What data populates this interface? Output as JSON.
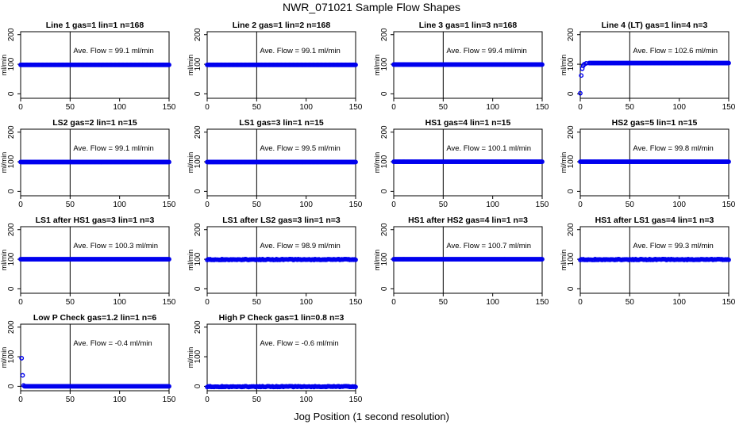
{
  "figure": {
    "title": "NWR_071021  Sample Flow Shapes",
    "xlabel": "Jog Position (1 second resolution)"
  },
  "colors": {
    "points": "#0000ee",
    "axes": "#000000"
  },
  "chart_data": [
    {
      "type": "scatter",
      "title": "Line 1 gas=1 lin=1 n=168",
      "annotation": "Ave. Flow = 99.1  ml/min",
      "ylabel": "ml/min",
      "xlim": [
        0,
        150
      ],
      "ylim": [
        -15,
        210
      ],
      "xticks": [
        0,
        50,
        100,
        150
      ],
      "yticks": [
        0,
        100,
        200
      ],
      "hline": 100,
      "vline": 50,
      "points": [
        [
          0,
          98
        ],
        [
          150,
          98
        ]
      ],
      "profile": "flat"
    },
    {
      "type": "scatter",
      "title": "Line 2 gas=1 lin=2 n=168",
      "annotation": "Ave. Flow = 99.1  ml/min",
      "ylabel": "ml/min",
      "xlim": [
        0,
        150
      ],
      "ylim": [
        -15,
        210
      ],
      "xticks": [
        0,
        50,
        100,
        150
      ],
      "yticks": [
        0,
        100,
        200
      ],
      "hline": 100,
      "vline": 50,
      "points": [
        [
          0,
          98
        ],
        [
          150,
          98
        ]
      ],
      "profile": "flat"
    },
    {
      "type": "scatter",
      "title": "Line 3 gas=1 lin=3 n=168",
      "annotation": "Ave. Flow = 99.4  ml/min",
      "ylabel": "ml/min",
      "xlim": [
        0,
        150
      ],
      "ylim": [
        -15,
        210
      ],
      "xticks": [
        0,
        50,
        100,
        150
      ],
      "yticks": [
        0,
        100,
        200
      ],
      "hline": 100,
      "vline": 50,
      "points": [
        [
          0,
          99
        ],
        [
          150,
          99
        ]
      ],
      "profile": "flat"
    },
    {
      "type": "scatter",
      "title": "Line 4 (LT) gas=1 lin=4 n=3",
      "annotation": "Ave. Flow = 102.6  ml/min",
      "ylabel": "ml/min",
      "xlim": [
        0,
        150
      ],
      "ylim": [
        -15,
        210
      ],
      "xticks": [
        0,
        50,
        100,
        150
      ],
      "yticks": [
        0,
        100,
        200
      ],
      "hline": 100,
      "vline": 50,
      "points": [
        [
          0,
          2
        ],
        [
          1,
          62
        ],
        [
          2,
          85
        ],
        [
          3,
          95
        ],
        [
          4,
          100
        ],
        [
          6,
          103
        ],
        [
          9,
          104
        ],
        [
          150,
          104
        ]
      ],
      "profile": "rise"
    },
    {
      "type": "scatter",
      "title": "LS2 gas=2 lin=1 n=15",
      "annotation": "Ave. Flow = 99.1  ml/min",
      "ylabel": "ml/min",
      "xlim": [
        0,
        150
      ],
      "ylim": [
        -15,
        210
      ],
      "xticks": [
        0,
        50,
        100,
        150
      ],
      "yticks": [
        0,
        100,
        200
      ],
      "hline": 100,
      "vline": 50,
      "points": [
        [
          0,
          99
        ],
        [
          150,
          99
        ]
      ],
      "profile": "flat"
    },
    {
      "type": "scatter",
      "title": "LS1 gas=3 lin=1 n=15",
      "annotation": "Ave. Flow = 99.5  ml/min",
      "ylabel": "ml/min",
      "xlim": [
        0,
        150
      ],
      "ylim": [
        -15,
        210
      ],
      "xticks": [
        0,
        50,
        100,
        150
      ],
      "yticks": [
        0,
        100,
        200
      ],
      "hline": 100,
      "vline": 50,
      "points": [
        [
          0,
          99
        ],
        [
          150,
          99
        ]
      ],
      "profile": "flat"
    },
    {
      "type": "scatter",
      "title": "HS1 gas=4 lin=1 n=15",
      "annotation": "Ave. Flow = 100.1  ml/min",
      "ylabel": "ml/min",
      "xlim": [
        0,
        150
      ],
      "ylim": [
        -15,
        210
      ],
      "xticks": [
        0,
        50,
        100,
        150
      ],
      "yticks": [
        0,
        100,
        200
      ],
      "hline": 100,
      "vline": 50,
      "points": [
        [
          0,
          100
        ],
        [
          150,
          100
        ]
      ],
      "profile": "flat"
    },
    {
      "type": "scatter",
      "title": "HS2 gas=5 lin=1 n=15",
      "annotation": "Ave. Flow = 99.8  ml/min",
      "ylabel": "ml/min",
      "xlim": [
        0,
        150
      ],
      "ylim": [
        -15,
        210
      ],
      "xticks": [
        0,
        50,
        100,
        150
      ],
      "yticks": [
        0,
        100,
        200
      ],
      "hline": 100,
      "vline": 50,
      "points": [
        [
          0,
          100
        ],
        [
          150,
          100
        ]
      ],
      "profile": "flat"
    },
    {
      "type": "scatter",
      "title": "LS1 after HS1 gas=3 lin=1 n=3",
      "annotation": "Ave. Flow = 100.3  ml/min",
      "ylabel": "ml/min",
      "xlim": [
        0,
        150
      ],
      "ylim": [
        -15,
        210
      ],
      "xticks": [
        0,
        50,
        100,
        150
      ],
      "yticks": [
        0,
        100,
        200
      ],
      "hline": 100,
      "vline": 50,
      "points": [
        [
          0,
          100
        ],
        [
          150,
          100
        ]
      ],
      "profile": "flat"
    },
    {
      "type": "scatter",
      "title": "LS1 after LS2 gas=3 lin=1 n=3",
      "annotation": "Ave. Flow = 98.9  ml/min",
      "ylabel": "ml/min",
      "xlim": [
        0,
        150
      ],
      "ylim": [
        -15,
        210
      ],
      "xticks": [
        0,
        50,
        100,
        150
      ],
      "yticks": [
        0,
        100,
        200
      ],
      "hline": 100,
      "vline": 50,
      "points": [
        [
          0,
          99
        ],
        [
          150,
          99
        ]
      ],
      "profile": "noisy"
    },
    {
      "type": "scatter",
      "title": "HS1 after HS2 gas=4 lin=1 n=3",
      "annotation": "Ave. Flow = 100.7  ml/min",
      "ylabel": "ml/min",
      "xlim": [
        0,
        150
      ],
      "ylim": [
        -15,
        210
      ],
      "xticks": [
        0,
        50,
        100,
        150
      ],
      "yticks": [
        0,
        100,
        200
      ],
      "hline": 100,
      "vline": 50,
      "points": [
        [
          0,
          100
        ],
        [
          150,
          100
        ]
      ],
      "profile": "flat"
    },
    {
      "type": "scatter",
      "title": "HS1 after LS1 gas=4 lin=1 n=3",
      "annotation": "Ave. Flow = 99.3  ml/min",
      "ylabel": "ml/min",
      "xlim": [
        0,
        150
      ],
      "ylim": [
        -15,
        210
      ],
      "xticks": [
        0,
        50,
        100,
        150
      ],
      "yticks": [
        0,
        100,
        200
      ],
      "hline": 100,
      "vline": 50,
      "points": [
        [
          0,
          99
        ],
        [
          150,
          99
        ]
      ],
      "profile": "noisy"
    },
    {
      "type": "scatter",
      "title": "Low P Check gas=1.2 lin=1 n=6",
      "annotation": "Ave. Flow = -0.4  ml/min",
      "ylabel": "ml/min",
      "xlim": [
        0,
        150
      ],
      "ylim": [
        -15,
        210
      ],
      "xticks": [
        0,
        50,
        100,
        150
      ],
      "yticks": [
        0,
        100,
        200
      ],
      "hline": 0,
      "vline": 50,
      "points": [
        [
          1,
          95
        ],
        [
          2,
          37
        ],
        [
          3,
          3
        ],
        [
          4,
          0
        ],
        [
          150,
          0
        ]
      ],
      "profile": "decay"
    },
    {
      "type": "scatter",
      "title": "High P Check gas=1 lin=0.8 n=3",
      "annotation": "Ave. Flow = -0.6  ml/min",
      "ylabel": "ml/min",
      "xlim": [
        0,
        150
      ],
      "ylim": [
        -15,
        210
      ],
      "xticks": [
        0,
        50,
        100,
        150
      ],
      "yticks": [
        0,
        100,
        200
      ],
      "hline": 0,
      "vline": 50,
      "points": [
        [
          0,
          -1
        ],
        [
          150,
          -1
        ]
      ],
      "profile": "noisy"
    }
  ]
}
